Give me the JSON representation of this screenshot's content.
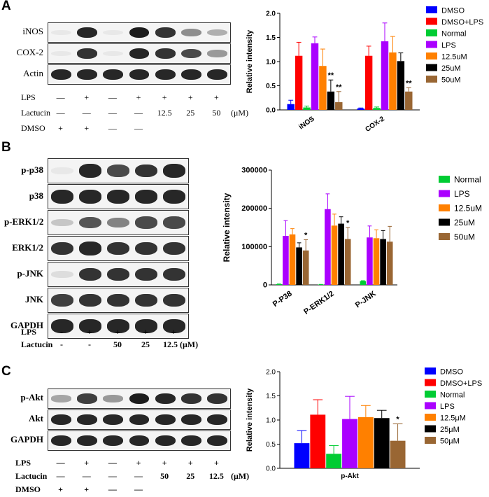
{
  "panels": [
    {
      "letter": "A",
      "blots": [
        "iNOS",
        "COX-2",
        "Actin"
      ],
      "band_intensity": [
        [
          0.05,
          0.9,
          0.05,
          0.95,
          0.85,
          0.45,
          0.3
        ],
        [
          0.05,
          0.85,
          0.05,
          0.9,
          0.85,
          0.75,
          0.4
        ],
        [
          0.9,
          0.9,
          0.9,
          0.9,
          0.9,
          0.9,
          0.9
        ]
      ],
      "conditions": [
        {
          "label": "LPS",
          "cells": [
            "—",
            "+",
            "—",
            "+",
            "+",
            "+",
            "+"
          ]
        },
        {
          "label": "Lactucin",
          "cells": [
            "—",
            "—",
            "—",
            "—",
            "12.5",
            "25",
            "50"
          ],
          "unit": "(μM)"
        },
        {
          "label": "DMSO",
          "cells": [
            "+",
            "+",
            "—",
            "—",
            "",
            "",
            ""
          ]
        }
      ]
    },
    {
      "letter": "B",
      "blots": [
        "p-p38",
        "p38",
        "p-ERK1/2",
        "ERK1/2",
        "p-JNK",
        "JNK",
        "GAPDH"
      ],
      "band_intensity": [
        [
          0.05,
          0.9,
          0.75,
          0.85,
          0.9
        ],
        [
          0.9,
          0.9,
          0.9,
          0.9,
          0.9
        ],
        [
          0.2,
          0.7,
          0.5,
          0.75,
          0.75
        ],
        [
          0.85,
          0.9,
          0.85,
          0.85,
          0.85
        ],
        [
          0.1,
          0.85,
          0.85,
          0.85,
          0.85
        ],
        [
          0.8,
          0.85,
          0.85,
          0.85,
          0.85
        ],
        [
          0.9,
          0.9,
          0.9,
          0.9,
          0.9
        ]
      ],
      "conditions": [
        {
          "label": "LPS",
          "cells": [
            "-",
            "+",
            "+",
            "+",
            "+"
          ]
        },
        {
          "label": "Lactucin",
          "cells": [
            "-",
            "-",
            "50",
            "25",
            "12.5 (μM)"
          ]
        }
      ]
    },
    {
      "letter": "C",
      "blots": [
        "p-Akt",
        "Akt",
        "GAPDH"
      ],
      "band_intensity": [
        [
          0.35,
          0.8,
          0.4,
          0.95,
          0.9,
          0.85,
          0.85
        ],
        [
          0.9,
          0.9,
          0.9,
          0.9,
          0.9,
          0.9,
          0.9
        ],
        [
          0.9,
          0.9,
          0.9,
          0.9,
          0.9,
          0.9,
          0.9
        ]
      ],
      "conditions": [
        {
          "label": "LPS",
          "cells": [
            "—",
            "+",
            "—",
            "+",
            "+",
            "+",
            "+"
          ]
        },
        {
          "label": "Lactucin",
          "cells": [
            "—",
            "—",
            "—",
            "—",
            "50",
            "25",
            "12.5"
          ],
          "unit": "(μM)"
        },
        {
          "label": "DMSO",
          "cells": [
            "+",
            "+",
            "—",
            "—",
            "",
            "",
            ""
          ]
        }
      ]
    }
  ],
  "colors": {
    "DMSO": "#0000ff",
    "DMSO+LPS": "#ff0000",
    "Normal": "#00cc33",
    "LPS": "#aa00ff",
    "12.5uM": "#ff8000",
    "25uM": "#000000",
    "50uM": "#996633"
  },
  "chart_data": [
    {
      "type": "bar",
      "ylabel": "Relative intensity",
      "ylim": [
        0,
        2.0
      ],
      "yticks": [
        "0.0",
        "0.5",
        "1.0",
        "1.5",
        "2.0"
      ],
      "categories": [
        "iNOS",
        "COX-2"
      ],
      "legend_position": "right",
      "series": [
        {
          "name": "DMSO",
          "values": [
            0.12,
            0.03
          ],
          "errors": [
            0.08,
            0.01
          ],
          "sig": [
            "",
            ""
          ]
        },
        {
          "name": "DMSO+LPS",
          "values": [
            1.12,
            1.12
          ],
          "errors": [
            0.28,
            0.2
          ],
          "sig": [
            "",
            ""
          ]
        },
        {
          "name": "Normal",
          "values": [
            0.05,
            0.04
          ],
          "errors": [
            0.03,
            0.02
          ],
          "sig": [
            "",
            ""
          ]
        },
        {
          "name": "LPS",
          "values": [
            1.38,
            1.42
          ],
          "errors": [
            0.13,
            0.38
          ],
          "sig": [
            "",
            ""
          ]
        },
        {
          "name": "12.5uM",
          "values": [
            0.91,
            1.19
          ],
          "errors": [
            0.35,
            0.33
          ],
          "sig": [
            "",
            ""
          ]
        },
        {
          "name": "25uM",
          "values": [
            0.38,
            1.01
          ],
          "errors": [
            0.24,
            0.17
          ],
          "sig": [
            "**",
            ""
          ]
        },
        {
          "name": "50uM",
          "values": [
            0.16,
            0.38
          ],
          "errors": [
            0.22,
            0.08
          ],
          "sig": [
            "**",
            "**"
          ]
        }
      ]
    },
    {
      "type": "bar",
      "ylabel": "Relative intensity",
      "ylim": [
        0,
        300000
      ],
      "yticks": [
        "0",
        "100000",
        "200000",
        "300000"
      ],
      "categories": [
        "P-P38",
        "P-ERK1/2",
        "P-JNK"
      ],
      "legend_position": "right",
      "series": [
        {
          "name": "Normal",
          "values": [
            2000,
            1000,
            10000
          ],
          "errors": [
            500,
            300,
            1000
          ],
          "sig": [
            "",
            "",
            ""
          ]
        },
        {
          "name": "LPS",
          "values": [
            128000,
            198000,
            124000
          ],
          "errors": [
            40000,
            40000,
            30000
          ],
          "sig": [
            "",
            "",
            ""
          ]
        },
        {
          "name": "12.5uM",
          "values": [
            132000,
            155000,
            122000
          ],
          "errors": [
            15000,
            30000,
            22000
          ],
          "sig": [
            "",
            "",
            ""
          ]
        },
        {
          "name": "25uM",
          "values": [
            98000,
            160000,
            120000
          ],
          "errors": [
            12000,
            18000,
            22000
          ],
          "sig": [
            "",
            "",
            ""
          ]
        },
        {
          "name": "50uM",
          "values": [
            90000,
            120000,
            113000
          ],
          "errors": [
            28000,
            30000,
            40000
          ],
          "sig": [
            "*",
            "*",
            ""
          ]
        }
      ]
    },
    {
      "type": "bar",
      "ylabel": "Relative intensity",
      "ylim": [
        0,
        2.0
      ],
      "yticks": [
        "0.0",
        "0.5",
        "1.0",
        "1.5",
        "2.0"
      ],
      "categories": [
        "p-Akt"
      ],
      "legend_position": "right",
      "series": [
        {
          "name": "DMSO",
          "values": [
            0.52
          ],
          "errors": [
            0.26
          ],
          "sig": [
            ""
          ]
        },
        {
          "name": "DMSO+LPS",
          "values": [
            1.11
          ],
          "errors": [
            0.31
          ],
          "sig": [
            ""
          ]
        },
        {
          "name": "Normal",
          "values": [
            0.3
          ],
          "errors": [
            0.17
          ],
          "sig": [
            ""
          ]
        },
        {
          "name": "LPS",
          "values": [
            1.02
          ],
          "errors": [
            0.47
          ],
          "sig": [
            ""
          ]
        },
        {
          "name": "12.5μM",
          "values": [
            1.06
          ],
          "errors": [
            0.24
          ],
          "sig": [
            ""
          ]
        },
        {
          "name": "25μM",
          "values": [
            1.04
          ],
          "errors": [
            0.16
          ],
          "sig": [
            ""
          ]
        },
        {
          "name": "50μM",
          "values": [
            0.57
          ],
          "errors": [
            0.35
          ],
          "sig": [
            "*"
          ]
        }
      ]
    }
  ]
}
